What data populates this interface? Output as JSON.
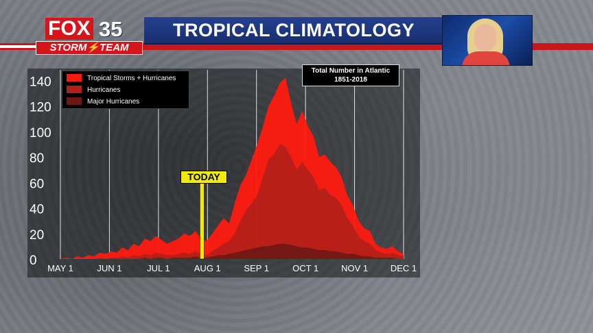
{
  "header": {
    "title": "TROPICAL CLIMATOLOGY",
    "logo_fox": "FOX",
    "logo_number": "35",
    "logo_team": "STORM⚡TEAM"
  },
  "chart_data": {
    "type": "area",
    "info_title": "Total Number in Atlantic",
    "info_years": "1851-2018",
    "today_label": "TODAY",
    "today_x": "AUG 1",
    "ylim": [
      0,
      145
    ],
    "yticks": [
      0,
      20,
      40,
      60,
      80,
      100,
      120,
      140
    ],
    "xticks": [
      "MAY 1",
      "JUN 1",
      "JUL 1",
      "AUG 1",
      "SEP 1",
      "OCT 1",
      "NOV 1",
      "DEC 1"
    ],
    "x_start": "MAY 1",
    "x_end": "DEC 1",
    "grid": true,
    "legend_position": "top-left",
    "colors": {
      "tropical_storms_hurricanes": "#ff1a10",
      "hurricanes": "#b0201a",
      "major_hurricanes": "#6e1714",
      "today": "#f2ea0c"
    },
    "series": [
      {
        "name": "Tropical Storms + Hurricanes",
        "values": [
          0,
          1,
          0,
          2,
          1,
          3,
          2,
          5,
          4,
          6,
          5,
          9,
          7,
          12,
          10,
          16,
          14,
          18,
          15,
          12,
          14,
          16,
          20,
          18,
          22,
          16,
          14,
          20,
          26,
          32,
          28,
          44,
          58,
          66,
          78,
          90,
          104,
          120,
          128,
          138,
          142,
          122,
          106,
          116,
          104,
          96,
          80,
          82,
          76,
          72,
          64,
          50,
          42,
          30,
          24,
          22,
          12,
          9,
          8,
          10,
          6,
          4
        ]
      },
      {
        "name": "Hurricanes",
        "values": [
          0,
          0,
          0,
          0,
          0,
          0,
          0,
          1,
          0,
          1,
          1,
          2,
          1,
          3,
          2,
          4,
          3,
          5,
          4,
          3,
          3,
          4,
          5,
          4,
          6,
          4,
          3,
          6,
          9,
          12,
          14,
          20,
          30,
          38,
          44,
          50,
          64,
          78,
          82,
          90,
          88,
          80,
          70,
          76,
          70,
          64,
          54,
          56,
          50,
          48,
          42,
          32,
          26,
          18,
          14,
          12,
          7,
          5,
          4,
          5,
          3,
          2
        ]
      },
      {
        "name": "Major Hurricanes",
        "values": [
          0,
          0,
          0,
          0,
          0,
          0,
          0,
          0,
          0,
          0,
          0,
          0,
          0,
          0,
          0,
          1,
          0,
          1,
          1,
          0,
          1,
          1,
          1,
          1,
          2,
          1,
          1,
          2,
          3,
          3,
          4,
          5,
          6,
          7,
          8,
          9,
          10,
          10,
          11,
          12,
          12,
          11,
          10,
          9,
          9,
          8,
          7,
          7,
          6,
          6,
          5,
          4,
          4,
          3,
          2,
          2,
          1,
          1,
          1,
          1,
          0,
          0
        ]
      }
    ]
  }
}
